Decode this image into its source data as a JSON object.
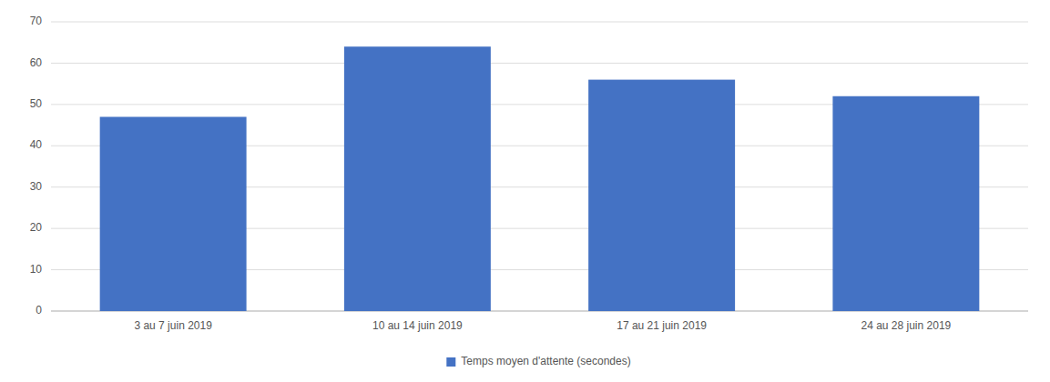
{
  "chart_data": {
    "type": "bar",
    "categories": [
      "3 au 7 juin 2019",
      "10 au 14 juin 2019",
      "17 au 21 juin 2019",
      "24 au 28 juin 2019"
    ],
    "series": [
      {
        "name": "Temps moyen d'attente (secondes)",
        "color": "#4472C4",
        "values": [
          47,
          64,
          56,
          52
        ]
      }
    ],
    "ylim": [
      0,
      70
    ],
    "yticks": [
      0,
      10,
      20,
      30,
      40,
      50,
      60,
      70
    ],
    "grid": true,
    "legend": "bottom"
  }
}
